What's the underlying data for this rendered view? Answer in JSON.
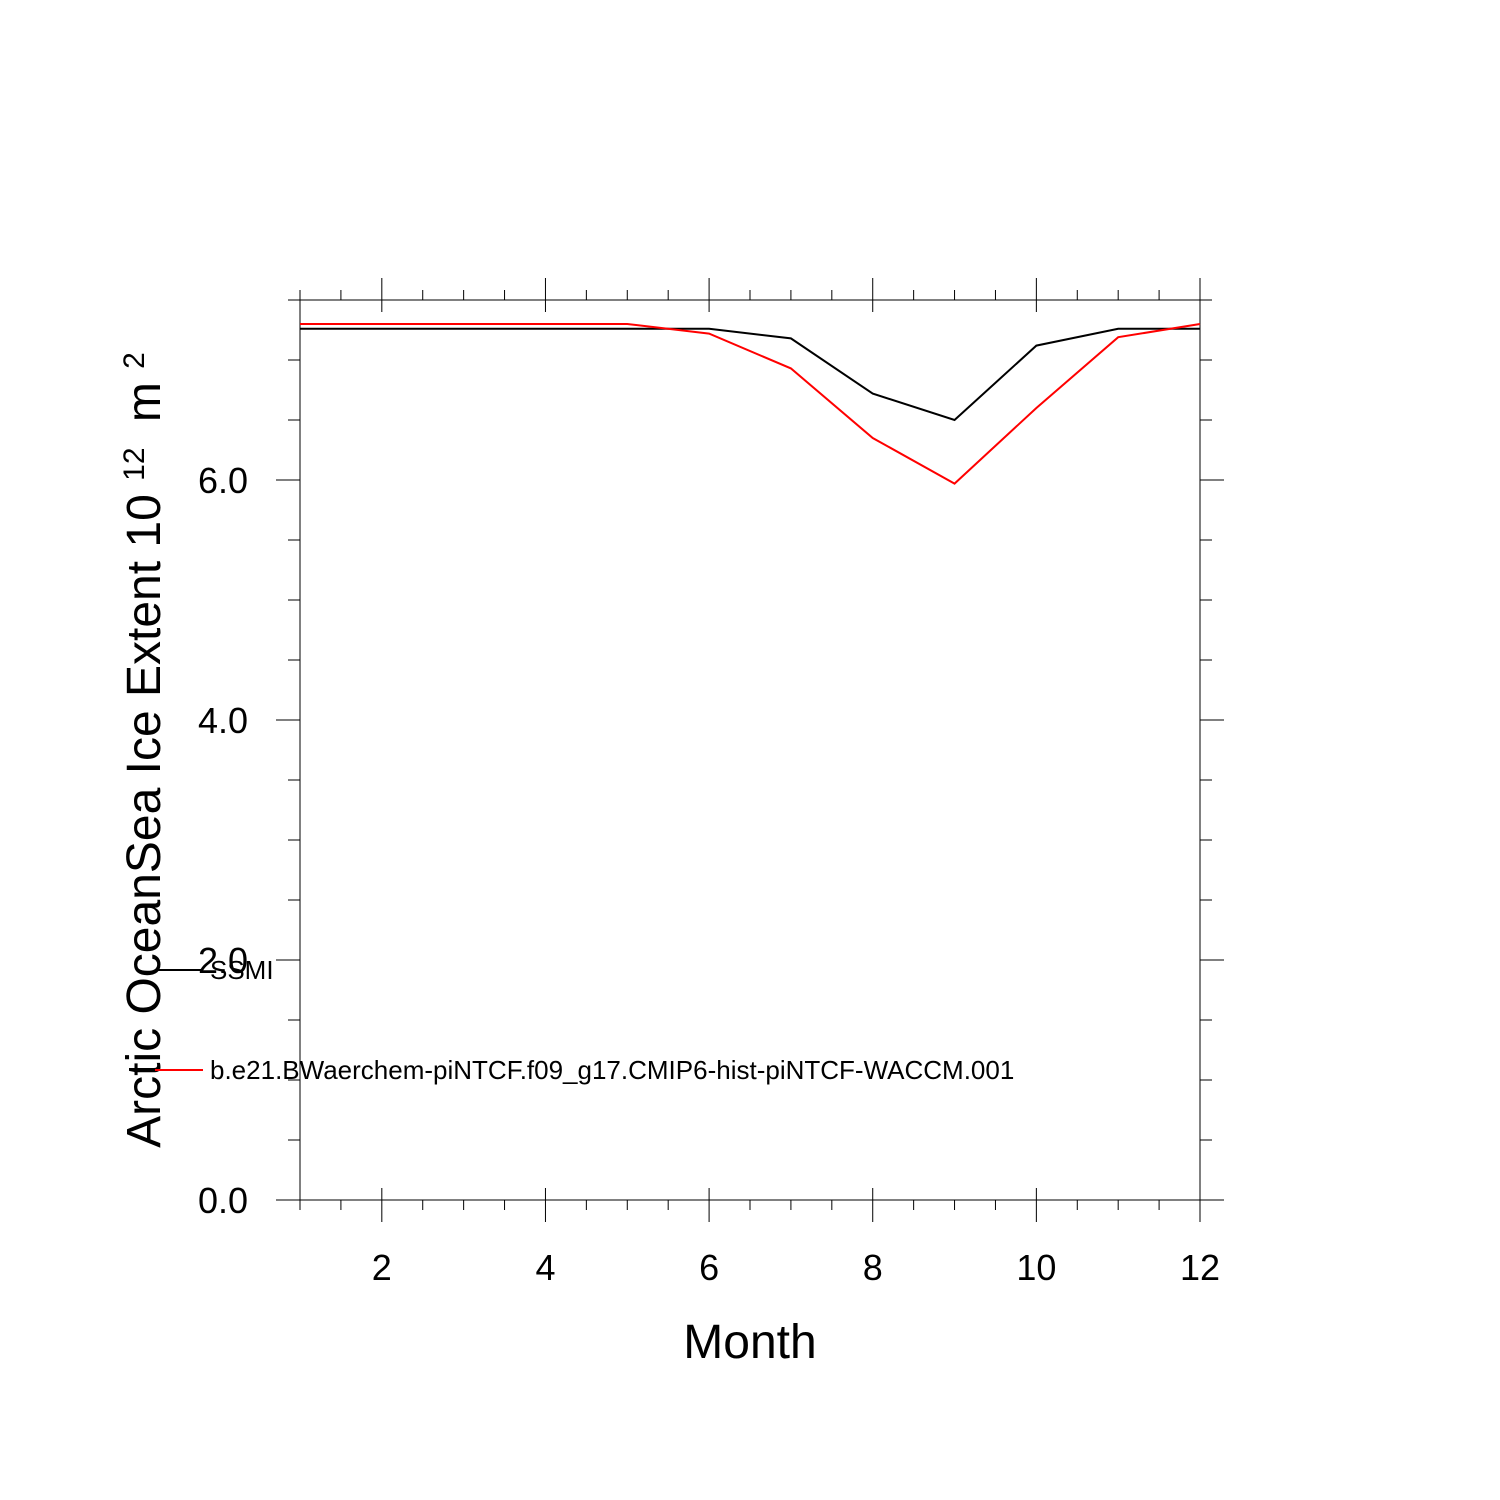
{
  "chart_data": {
    "type": "line",
    "title": "",
    "xlabel": "Month",
    "ylabel": "Arctic OceanSea Ice Extent 10",
    "ylabel_exponent": "12",
    "ylabel_unit": "m",
    "ylabel_unit_exponent": "2",
    "xlim": [
      1,
      12
    ],
    "ylim": [
      0,
      7.5
    ],
    "x_ticks": [
      2,
      4,
      6,
      8,
      10,
      12
    ],
    "x_tick_labels": [
      "2",
      "4",
      "6",
      "8",
      "10",
      "12"
    ],
    "y_ticks": [
      0,
      2,
      4,
      6
    ],
    "y_tick_labels": [
      "0.0",
      "2.0",
      "4.0",
      "6.0"
    ],
    "grid": false,
    "legend_placement": "lower-left",
    "x": [
      1,
      2,
      3,
      4,
      5,
      6,
      7,
      8,
      9,
      10,
      11,
      12
    ],
    "series": [
      {
        "name": "SSMI",
        "color": "#000000",
        "values": [
          7.26,
          7.26,
          7.26,
          7.26,
          7.26,
          7.26,
          7.18,
          6.72,
          6.5,
          7.12,
          7.26,
          7.26
        ]
      },
      {
        "name": "b.e21.BWaerchem-piNTCF.f09_g17.CMIP6-hist-piNTCF-WACCM.001",
        "color": "#ff0000",
        "values": [
          7.3,
          7.3,
          7.3,
          7.3,
          7.3,
          7.22,
          6.93,
          6.35,
          5.97,
          6.6,
          7.19,
          7.3
        ]
      }
    ]
  }
}
